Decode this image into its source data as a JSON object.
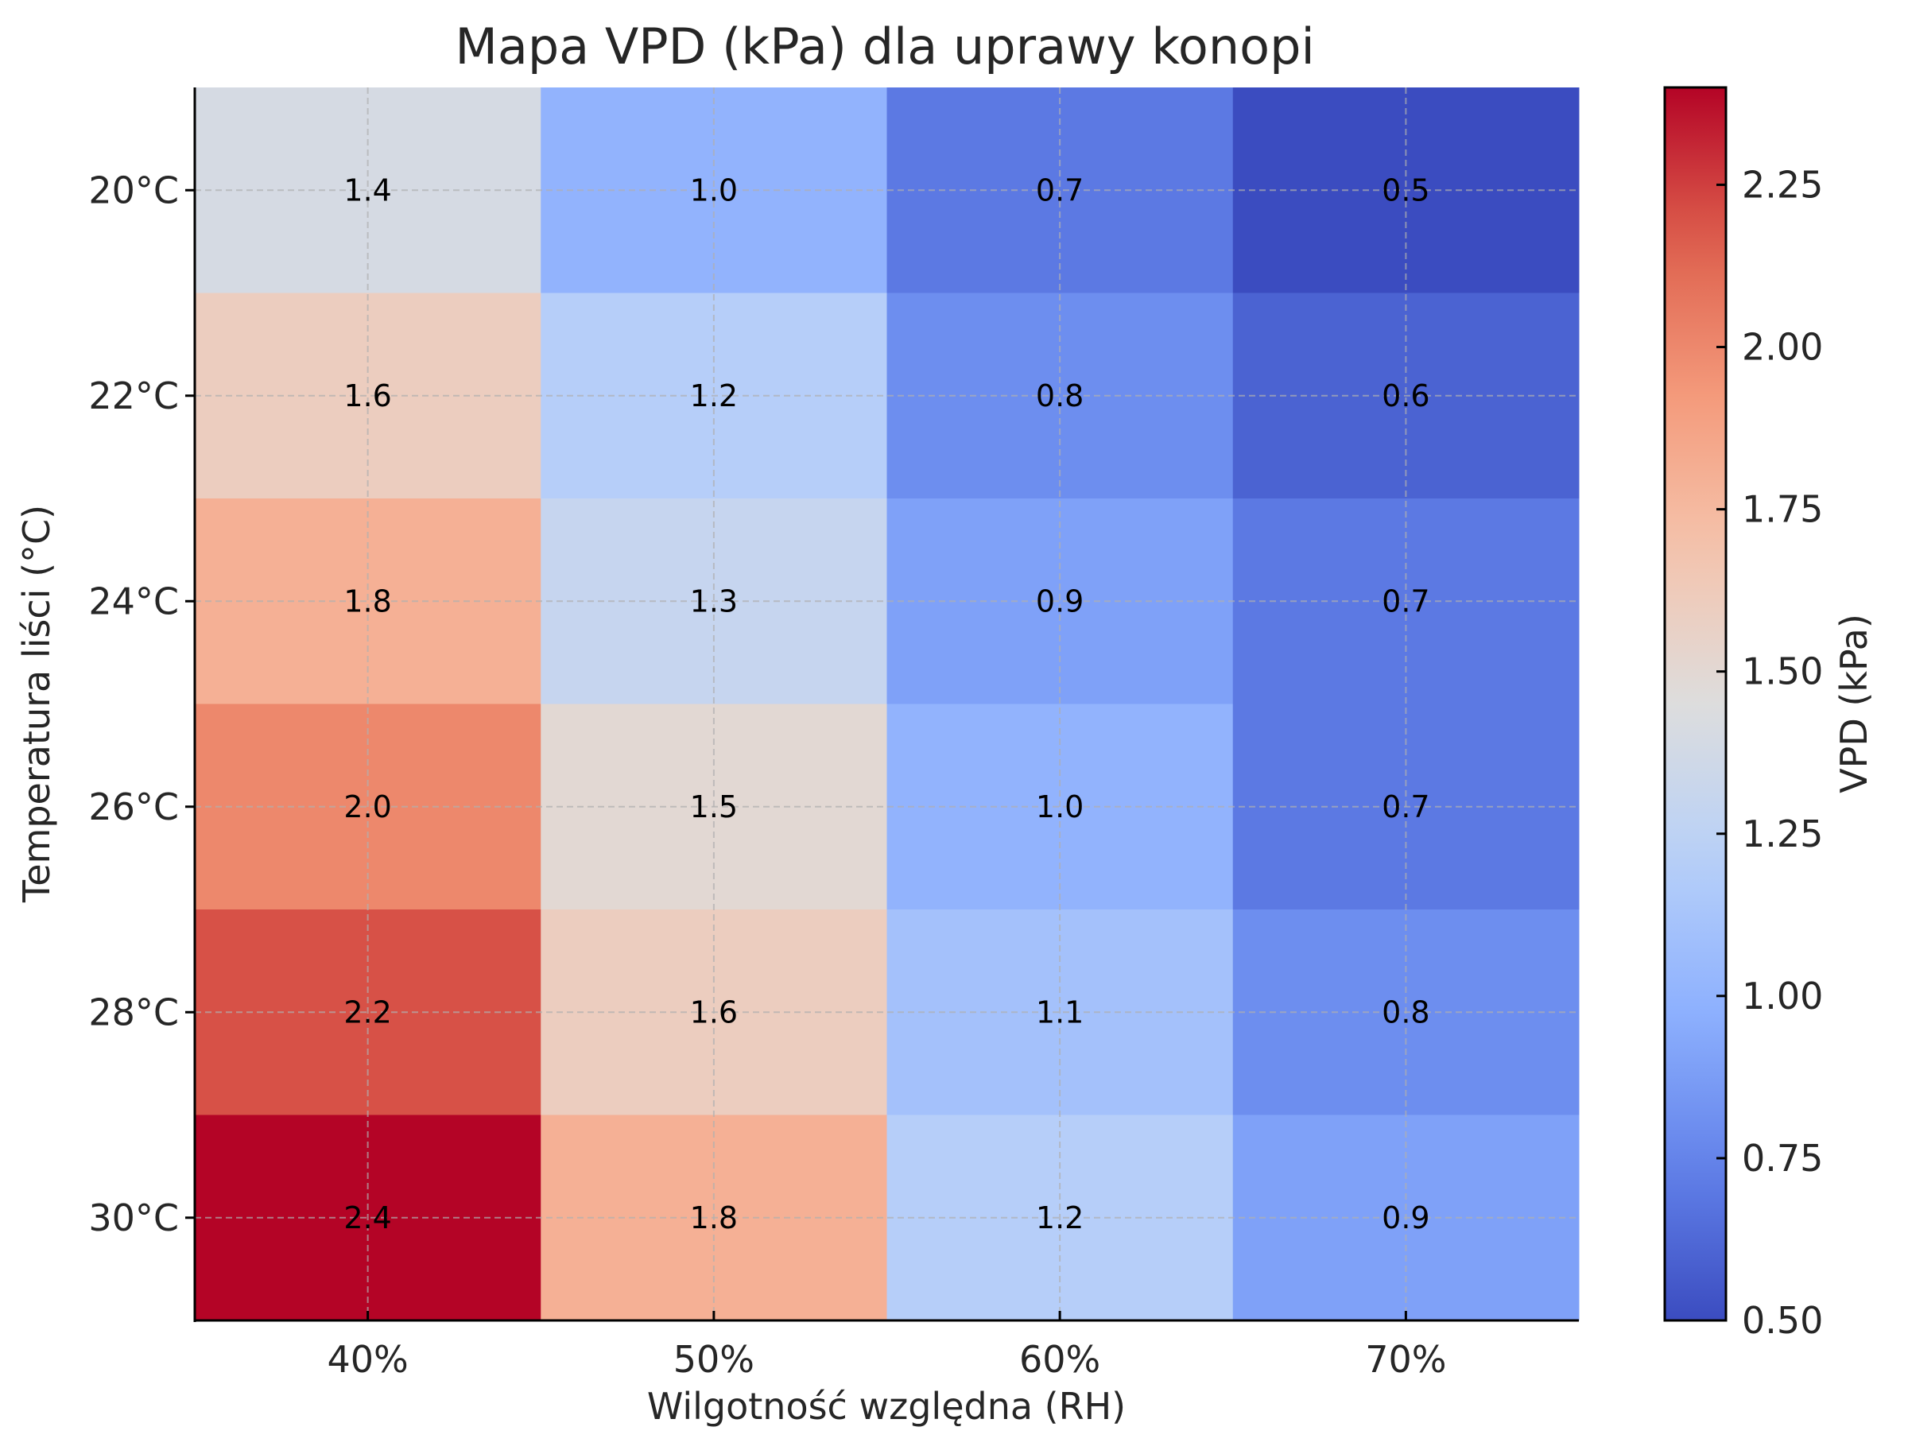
{
  "chart_data": {
    "type": "heatmap",
    "title": "Mapa VPD (kPa) dla uprawy konopi",
    "xlabel": "Wilgotność względna (RH)",
    "ylabel": "Temperatura liści (°C)",
    "x_categories": [
      "40%",
      "50%",
      "60%",
      "70%"
    ],
    "y_categories": [
      "20°C",
      "22°C",
      "24°C",
      "26°C",
      "28°C",
      "30°C"
    ],
    "values": [
      [
        1.4,
        1.0,
        0.7,
        0.5
      ],
      [
        1.6,
        1.2,
        0.8,
        0.6
      ],
      [
        1.8,
        1.3,
        0.9,
        0.7
      ],
      [
        2.0,
        1.5,
        1.0,
        0.7
      ],
      [
        2.2,
        1.6,
        1.1,
        0.8
      ],
      [
        2.4,
        1.8,
        1.2,
        0.9
      ]
    ],
    "value_format": "0.0",
    "colormap": "coolwarm",
    "colorbar": {
      "label": "VPD (kPa)",
      "range": [
        0.5,
        2.4
      ],
      "ticks": [
        0.5,
        0.75,
        1.0,
        1.25,
        1.5,
        1.75,
        2.0,
        2.25
      ],
      "tick_labels": [
        "0.50",
        "0.75",
        "1.00",
        "1.25",
        "1.50",
        "1.75",
        "2.00",
        "2.25"
      ]
    },
    "grid": true,
    "grid_style": "dashed"
  }
}
